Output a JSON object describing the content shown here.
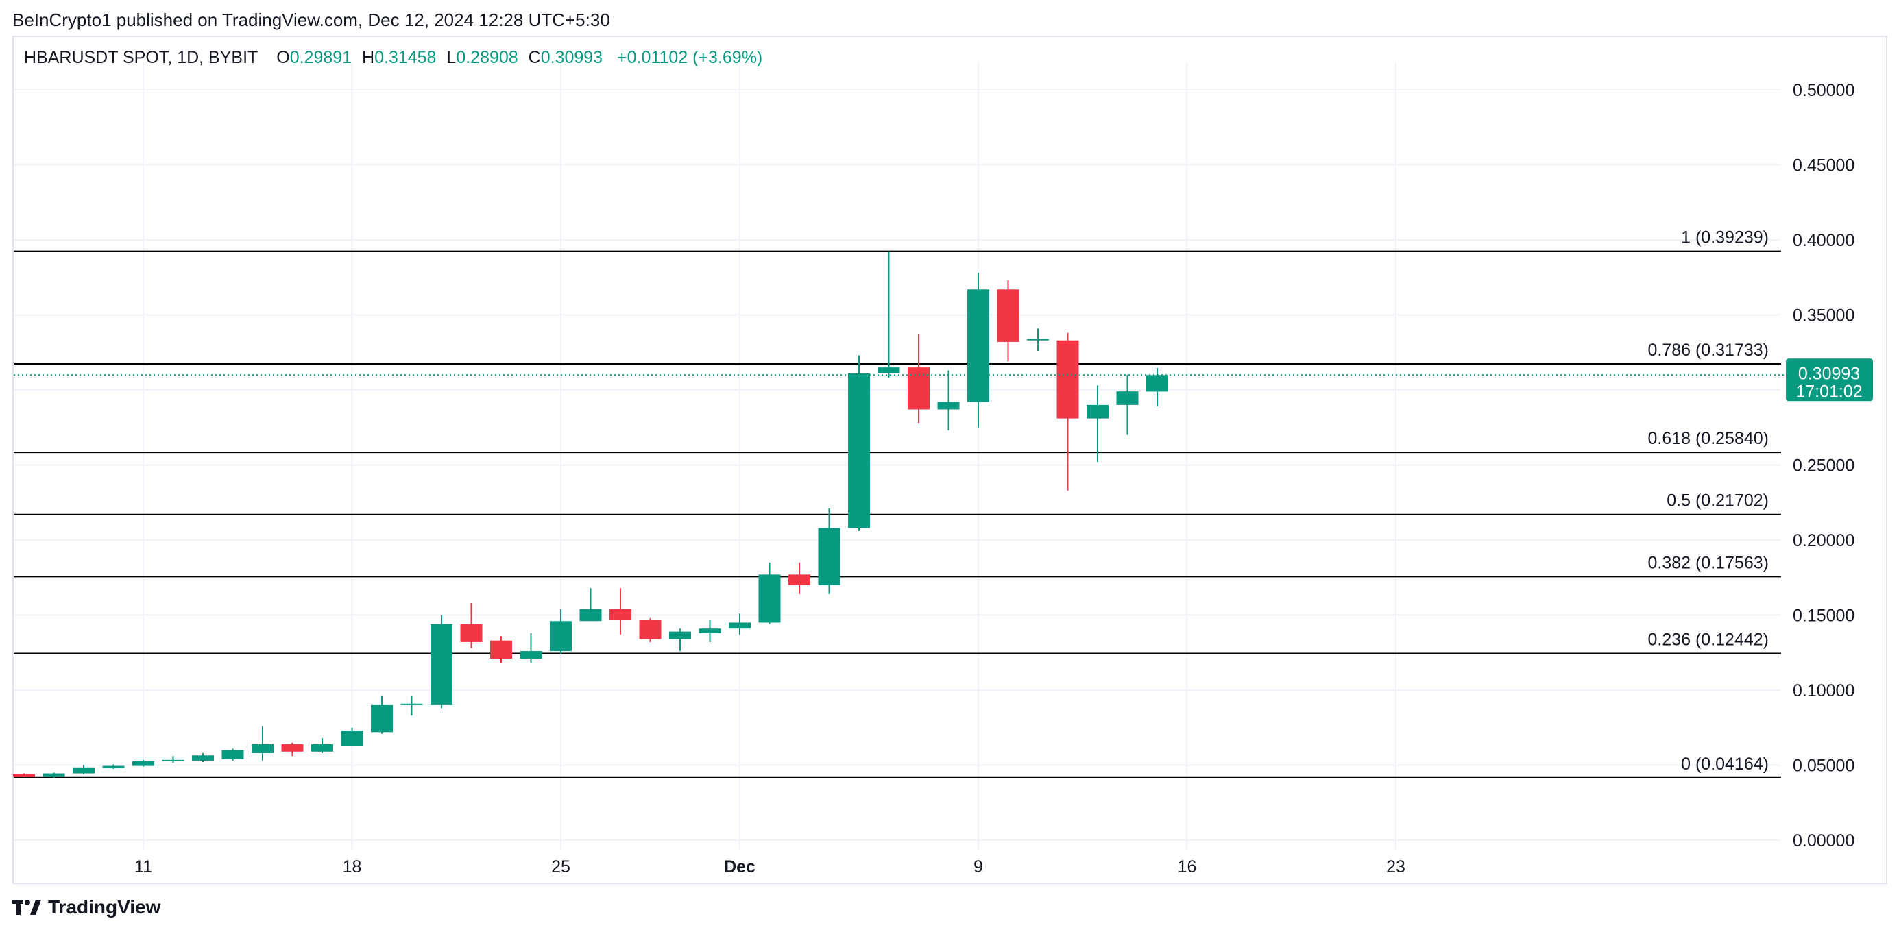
{
  "header": {
    "published": "BeInCrypto1 published on TradingView.com, Dec 12, 2024 12:28 UTC+5:30"
  },
  "legend": {
    "symbol": "HBARUSDT SPOT, 1D, BYBIT",
    "o_label": "O",
    "o": "0.29891",
    "h_label": "H",
    "h": "0.31458",
    "l_label": "L",
    "l": "0.28908",
    "c_label": "C",
    "c": "0.30993",
    "change": "+0.01102 (+3.69%)"
  },
  "price_tag": {
    "price": "0.30993",
    "countdown": "17:01:02"
  },
  "footer": {
    "brand": "TradingView"
  },
  "colors": {
    "up": "#089981",
    "down": "#f23645",
    "grid": "#f0f3fa",
    "fib_line": "#000000"
  },
  "chart_data": {
    "type": "candlestick",
    "title": "HBARUSDT SPOT, 1D, BYBIT",
    "ylim": [
      0,
      0.5
    ],
    "y_ticks": [
      "0.00000",
      "0.05000",
      "0.10000",
      "0.15000",
      "0.20000",
      "0.25000",
      "0.30000",
      "0.35000",
      "0.40000",
      "0.45000",
      "0.50000"
    ],
    "x_ticks": [
      {
        "label": "11",
        "date": "2024-11-11"
      },
      {
        "label": "18",
        "date": "2024-11-18"
      },
      {
        "label": "25",
        "date": "2024-11-25"
      },
      {
        "label": "Dec",
        "date": "2024-12-01"
      },
      {
        "label": "9",
        "date": "2024-12-09"
      },
      {
        "label": "16",
        "date": "2024-12-16"
      },
      {
        "label": "23",
        "date": "2024-12-23"
      }
    ],
    "fibonacci": [
      {
        "label": "0 (0.04164)",
        "value": 0.04164
      },
      {
        "label": "0.236 (0.12442)",
        "value": 0.12442
      },
      {
        "label": "0.382 (0.17563)",
        "value": 0.17563
      },
      {
        "label": "0.5 (0.21702)",
        "value": 0.21702
      },
      {
        "label": "0.618 (0.25840)",
        "value": 0.2584
      },
      {
        "label": "0.786 (0.31733)",
        "value": 0.31733
      },
      {
        "label": "1 (0.39239)",
        "value": 0.39239
      }
    ],
    "current_price": 0.30993,
    "candles": [
      {
        "date": "2024-11-07",
        "o": 0.044,
        "h": 0.0445,
        "l": 0.042,
        "c": 0.042
      },
      {
        "date": "2024-11-08",
        "o": 0.042,
        "h": 0.045,
        "l": 0.0416,
        "c": 0.0445
      },
      {
        "date": "2024-11-09",
        "o": 0.0445,
        "h": 0.05,
        "l": 0.044,
        "c": 0.0485
      },
      {
        "date": "2024-11-10",
        "o": 0.048,
        "h": 0.0505,
        "l": 0.0475,
        "c": 0.0495
      },
      {
        "date": "2024-11-11",
        "o": 0.0495,
        "h": 0.0535,
        "l": 0.049,
        "c": 0.0525
      },
      {
        "date": "2024-11-12",
        "o": 0.0525,
        "h": 0.056,
        "l": 0.0515,
        "c": 0.0535
      },
      {
        "date": "2024-11-13",
        "o": 0.053,
        "h": 0.058,
        "l": 0.052,
        "c": 0.0565
      },
      {
        "date": "2024-11-14",
        "o": 0.054,
        "h": 0.061,
        "l": 0.053,
        "c": 0.06
      },
      {
        "date": "2024-11-15",
        "o": 0.058,
        "h": 0.076,
        "l": 0.053,
        "c": 0.064
      },
      {
        "date": "2024-11-16",
        "o": 0.064,
        "h": 0.065,
        "l": 0.056,
        "c": 0.059
      },
      {
        "date": "2024-11-17",
        "o": 0.059,
        "h": 0.068,
        "l": 0.058,
        "c": 0.064
      },
      {
        "date": "2024-11-18",
        "o": 0.063,
        "h": 0.075,
        "l": 0.063,
        "c": 0.073
      },
      {
        "date": "2024-11-19",
        "o": 0.072,
        "h": 0.096,
        "l": 0.071,
        "c": 0.09
      },
      {
        "date": "2024-11-20",
        "o": 0.09,
        "h": 0.096,
        "l": 0.083,
        "c": 0.091
      },
      {
        "date": "2024-11-21",
        "o": 0.09,
        "h": 0.15,
        "l": 0.088,
        "c": 0.144
      },
      {
        "date": "2024-11-22",
        "o": 0.144,
        "h": 0.158,
        "l": 0.128,
        "c": 0.132
      },
      {
        "date": "2024-11-23",
        "o": 0.133,
        "h": 0.136,
        "l": 0.118,
        "c": 0.121
      },
      {
        "date": "2024-11-24",
        "o": 0.121,
        "h": 0.138,
        "l": 0.118,
        "c": 0.126
      },
      {
        "date": "2024-11-25",
        "o": 0.126,
        "h": 0.154,
        "l": 0.124,
        "c": 0.146
      },
      {
        "date": "2024-11-26",
        "o": 0.146,
        "h": 0.168,
        "l": 0.146,
        "c": 0.154
      },
      {
        "date": "2024-11-27",
        "o": 0.154,
        "h": 0.168,
        "l": 0.137,
        "c": 0.147
      },
      {
        "date": "2024-11-28",
        "o": 0.147,
        "h": 0.148,
        "l": 0.132,
        "c": 0.134
      },
      {
        "date": "2024-11-29",
        "o": 0.134,
        "h": 0.141,
        "l": 0.126,
        "c": 0.139
      },
      {
        "date": "2024-11-30",
        "o": 0.138,
        "h": 0.147,
        "l": 0.132,
        "c": 0.141
      },
      {
        "date": "2024-12-01",
        "o": 0.141,
        "h": 0.151,
        "l": 0.137,
        "c": 0.145
      },
      {
        "date": "2024-12-02",
        "o": 0.145,
        "h": 0.185,
        "l": 0.144,
        "c": 0.177
      },
      {
        "date": "2024-12-03",
        "o": 0.177,
        "h": 0.185,
        "l": 0.164,
        "c": 0.17
      },
      {
        "date": "2024-12-04",
        "o": 0.17,
        "h": 0.221,
        "l": 0.164,
        "c": 0.208
      },
      {
        "date": "2024-12-05",
        "o": 0.208,
        "h": 0.323,
        "l": 0.206,
        "c": 0.311
      },
      {
        "date": "2024-12-06",
        "o": 0.311,
        "h": 0.3924,
        "l": 0.308,
        "c": 0.315
      },
      {
        "date": "2024-12-07",
        "o": 0.315,
        "h": 0.337,
        "l": 0.278,
        "c": 0.287
      },
      {
        "date": "2024-12-08",
        "o": 0.287,
        "h": 0.313,
        "l": 0.273,
        "c": 0.292
      },
      {
        "date": "2024-12-09",
        "o": 0.292,
        "h": 0.378,
        "l": 0.275,
        "c": 0.367
      },
      {
        "date": "2024-12-10",
        "o": 0.367,
        "h": 0.373,
        "l": 0.319,
        "c": 0.332
      },
      {
        "date": "2024-12-11",
        "o": 0.333,
        "h": 0.341,
        "l": 0.326,
        "c": 0.334
      },
      {
        "date": "2024-12-12",
        "o": 0.333,
        "h": 0.338,
        "l": 0.233,
        "c": 0.281
      },
      {
        "date": "2024-12-13",
        "o": 0.281,
        "h": 0.303,
        "l": 0.252,
        "c": 0.29
      },
      {
        "date": "2024-12-14",
        "o": 0.29,
        "h": 0.31,
        "l": 0.27,
        "c": 0.299
      },
      {
        "date": "2024-12-15",
        "o": 0.2989,
        "h": 0.3146,
        "l": 0.2891,
        "c": 0.3099
      }
    ]
  }
}
